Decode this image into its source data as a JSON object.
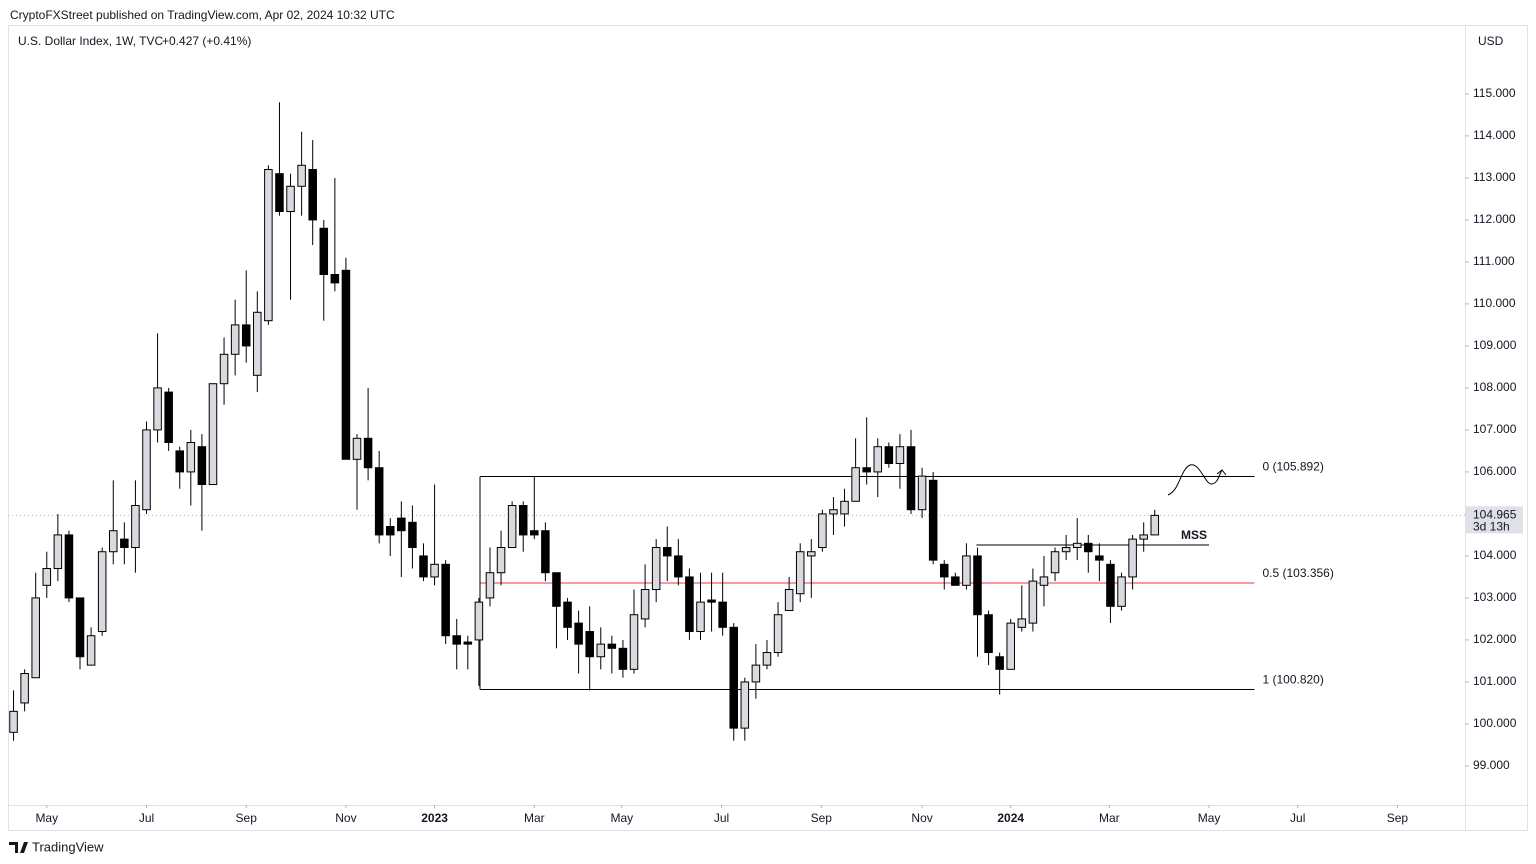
{
  "header": {
    "publisher": "CryptoFXStreet published on TradingView.com, Apr 02, 2024 10:32 UTC",
    "footer": "TradingView"
  },
  "chart_data": {
    "type": "candlestick",
    "title": "U.S. Dollar Index, 1W, TVC",
    "change": "+0.427 (+0.41%)",
    "currency": "USD",
    "up_color": "#d9dadf",
    "down_color": "#000000",
    "open": [
      99.8,
      100.5,
      101.1,
      103.3,
      103.7,
      104.5,
      103.0,
      101.4,
      102.2,
      104.1,
      104.4,
      104.2,
      105.1,
      107.0,
      107.9,
      106.5,
      106.0,
      106.6,
      105.7,
      108.1,
      108.8,
      109.5,
      108.3,
      109.6,
      113.1,
      112.2,
      112.8,
      113.2,
      111.8,
      110.7,
      110.8,
      106.3,
      106.8,
      106.1,
      104.7,
      104.9,
      104.8,
      104.0,
      103.5,
      103.8,
      102.1,
      101.95,
      102.0,
      103.0,
      103.6,
      104.2,
      105.2,
      104.6,
      104.6,
      103.6,
      102.9,
      102.4,
      102.2,
      101.6,
      101.9,
      101.8,
      101.3,
      102.5,
      103.2,
      104.2,
      104.0,
      103.5,
      102.2,
      102.95,
      102.9,
      102.3,
      99.9,
      101.0,
      101.4,
      101.7,
      102.7,
      103.1,
      104.0,
      104.2,
      105.0,
      105.0,
      105.3,
      106.1,
      106.0,
      106.6,
      106.2,
      106.6,
      105.1,
      105.8,
      103.8,
      103.5,
      103.3,
      104.0,
      102.6,
      101.6,
      101.3,
      102.3,
      102.4,
      103.3,
      103.6,
      104.1,
      104.2,
      104.3,
      104.0,
      103.8,
      102.8,
      103.5,
      104.4,
      104.5
    ],
    "high": [
      100.8,
      101.3,
      103.6,
      104.1,
      105.0,
      104.6,
      103.0,
      102.3,
      104.2,
      105.8,
      104.8,
      105.8,
      107.2,
      109.3,
      108.0,
      106.6,
      107.0,
      106.9,
      108.1,
      109.2,
      110.1,
      110.8,
      110.3,
      113.3,
      114.8,
      113.1,
      114.1,
      113.9,
      112.0,
      113.0,
      111.1,
      106.9,
      108.0,
      106.5,
      104.9,
      105.3,
      105.2,
      104.3,
      105.7,
      103.9,
      102.5,
      102.1,
      103.0,
      104.2,
      104.6,
      105.3,
      105.3,
      105.9,
      104.8,
      103.6,
      103.0,
      102.7,
      102.8,
      102.3,
      102.1,
      102.0,
      103.2,
      103.8,
      104.4,
      104.7,
      104.4,
      103.7,
      103.6,
      103.6,
      103.6,
      102.4,
      101.1,
      101.9,
      102.0,
      102.9,
      103.5,
      104.3,
      104.4,
      105.1,
      105.4,
      105.6,
      106.8,
      107.3,
      106.8,
      106.7,
      106.9,
      107.0,
      106.1,
      106.0,
      103.9,
      103.6,
      104.3,
      104.2,
      102.7,
      101.7,
      102.5,
      103.3,
      103.7,
      104.0,
      104.2,
      104.5,
      104.9,
      104.5,
      104.3,
      103.9,
      103.6,
      104.5,
      104.8,
      105.1
    ],
    "low": [
      99.6,
      100.3,
      101.1,
      103.0,
      103.4,
      102.9,
      101.3,
      101.4,
      102.1,
      103.8,
      103.8,
      103.6,
      105.0,
      106.7,
      106.5,
      105.6,
      105.2,
      104.6,
      105.7,
      107.6,
      108.3,
      108.6,
      107.9,
      109.5,
      112.1,
      110.1,
      112.1,
      111.4,
      109.6,
      110.3,
      106.3,
      105.1,
      105.8,
      104.3,
      104.0,
      103.5,
      103.7,
      103.4,
      103.3,
      101.9,
      101.3,
      101.3,
      100.9,
      102.8,
      103.3,
      104.2,
      104.1,
      104.4,
      103.4,
      101.8,
      102.0,
      101.2,
      100.8,
      101.3,
      101.2,
      101.1,
      101.2,
      102.3,
      102.9,
      103.4,
      103.3,
      102.0,
      102.0,
      102.2,
      102.1,
      99.6,
      99.6,
      100.6,
      101.3,
      101.6,
      102.7,
      102.9,
      103.0,
      104.1,
      104.5,
      104.7,
      105.3,
      105.7,
      105.4,
      106.1,
      105.6,
      105.0,
      104.9,
      103.8,
      103.2,
      103.3,
      103.2,
      101.6,
      101.4,
      100.7,
      101.3,
      102.2,
      102.2,
      102.8,
      103.4,
      103.9,
      103.9,
      103.6,
      103.4,
      102.4,
      102.7,
      103.2,
      104.1,
      104.5
    ],
    "close": [
      100.3,
      101.2,
      103.0,
      103.7,
      104.5,
      103.0,
      101.6,
      102.1,
      104.1,
      104.6,
      104.2,
      105.2,
      107.0,
      108.0,
      106.7,
      106.0,
      106.7,
      105.7,
      108.1,
      108.8,
      109.5,
      109.0,
      109.8,
      113.2,
      112.2,
      112.8,
      113.3,
      112.0,
      110.7,
      110.5,
      106.3,
      106.8,
      106.1,
      104.5,
      104.5,
      104.6,
      104.2,
      103.5,
      103.8,
      102.1,
      101.9,
      101.9,
      102.9,
      103.6,
      104.2,
      105.2,
      104.5,
      104.5,
      103.6,
      102.8,
      102.3,
      101.9,
      101.6,
      101.9,
      101.8,
      101.3,
      102.6,
      103.2,
      104.2,
      104.0,
      103.5,
      102.2,
      102.9,
      102.9,
      102.3,
      99.9,
      101.0,
      101.4,
      101.7,
      102.6,
      103.2,
      104.1,
      104.1,
      105.0,
      105.1,
      105.3,
      106.1,
      106.0,
      106.6,
      106.2,
      106.6,
      105.1,
      105.9,
      103.9,
      103.5,
      103.3,
      104.0,
      102.6,
      101.7,
      101.3,
      102.4,
      102.5,
      103.4,
      103.5,
      104.1,
      104.2,
      104.3,
      104.1,
      103.9,
      102.8,
      103.5,
      104.4,
      104.5,
      104.965
    ],
    "xlim": [
      -0.5,
      131
    ],
    "xticks": [
      {
        "value": 3.0,
        "label": "May"
      },
      {
        "value": 12.0,
        "label": "Jul"
      },
      {
        "value": 21.0,
        "label": "Sep"
      },
      {
        "value": 30.0,
        "label": "Nov"
      },
      {
        "value": 38.0,
        "label": "2023"
      },
      {
        "value": 47.0,
        "label": "Mar"
      },
      {
        "value": 54.9,
        "label": "May"
      },
      {
        "value": 63.9,
        "label": "Jul"
      },
      {
        "value": 72.9,
        "label": "Sep"
      },
      {
        "value": 82.0,
        "label": "Nov"
      },
      {
        "value": 90.0,
        "label": "2024"
      },
      {
        "value": 98.9,
        "label": "Mar"
      },
      {
        "value": 107.9,
        "label": "May"
      },
      {
        "value": 115.9,
        "label": "Jul"
      },
      {
        "value": 124.9,
        "label": "Sep"
      }
    ],
    "ylim": [
      98.07,
      116.64
    ],
    "yticks": [
      {
        "value": 99,
        "label": "99.000"
      },
      {
        "value": 100,
        "label": "100.000"
      },
      {
        "value": 101,
        "label": "101.000"
      },
      {
        "value": 102,
        "label": "102.000"
      },
      {
        "value": 103,
        "label": "103.000"
      },
      {
        "value": 104,
        "label": "104.000"
      },
      {
        "value": 105,
        "label": "105.000"
      },
      {
        "value": 106,
        "label": "106.000"
      },
      {
        "value": 107,
        "label": "107.000"
      },
      {
        "value": 108,
        "label": "108.000"
      },
      {
        "value": 109,
        "label": "109.000"
      },
      {
        "value": 110,
        "label": "110.000"
      },
      {
        "value": 111,
        "label": "111.000"
      },
      {
        "value": 112,
        "label": "112.000"
      },
      {
        "value": 113,
        "label": "113.000"
      },
      {
        "value": 114,
        "label": "114.000"
      },
      {
        "value": 115,
        "label": "115.000"
      }
    ],
    "last_price": 104.965,
    "countdown": "3d 13h",
    "fib_x": [
      42.1,
      112
    ],
    "fib_levels": [
      {
        "value": 105.892,
        "label": "0 (105.892)",
        "color": "#000000"
      },
      {
        "value": 103.356,
        "label": "0.5 (103.356)",
        "color": "#f23645"
      },
      {
        "value": 100.82,
        "label": "1 (100.820)",
        "color": "#000000"
      }
    ],
    "mss": {
      "value": 104.26,
      "label": "MSS",
      "x": [
        86.9,
        107.9
      ]
    }
  }
}
